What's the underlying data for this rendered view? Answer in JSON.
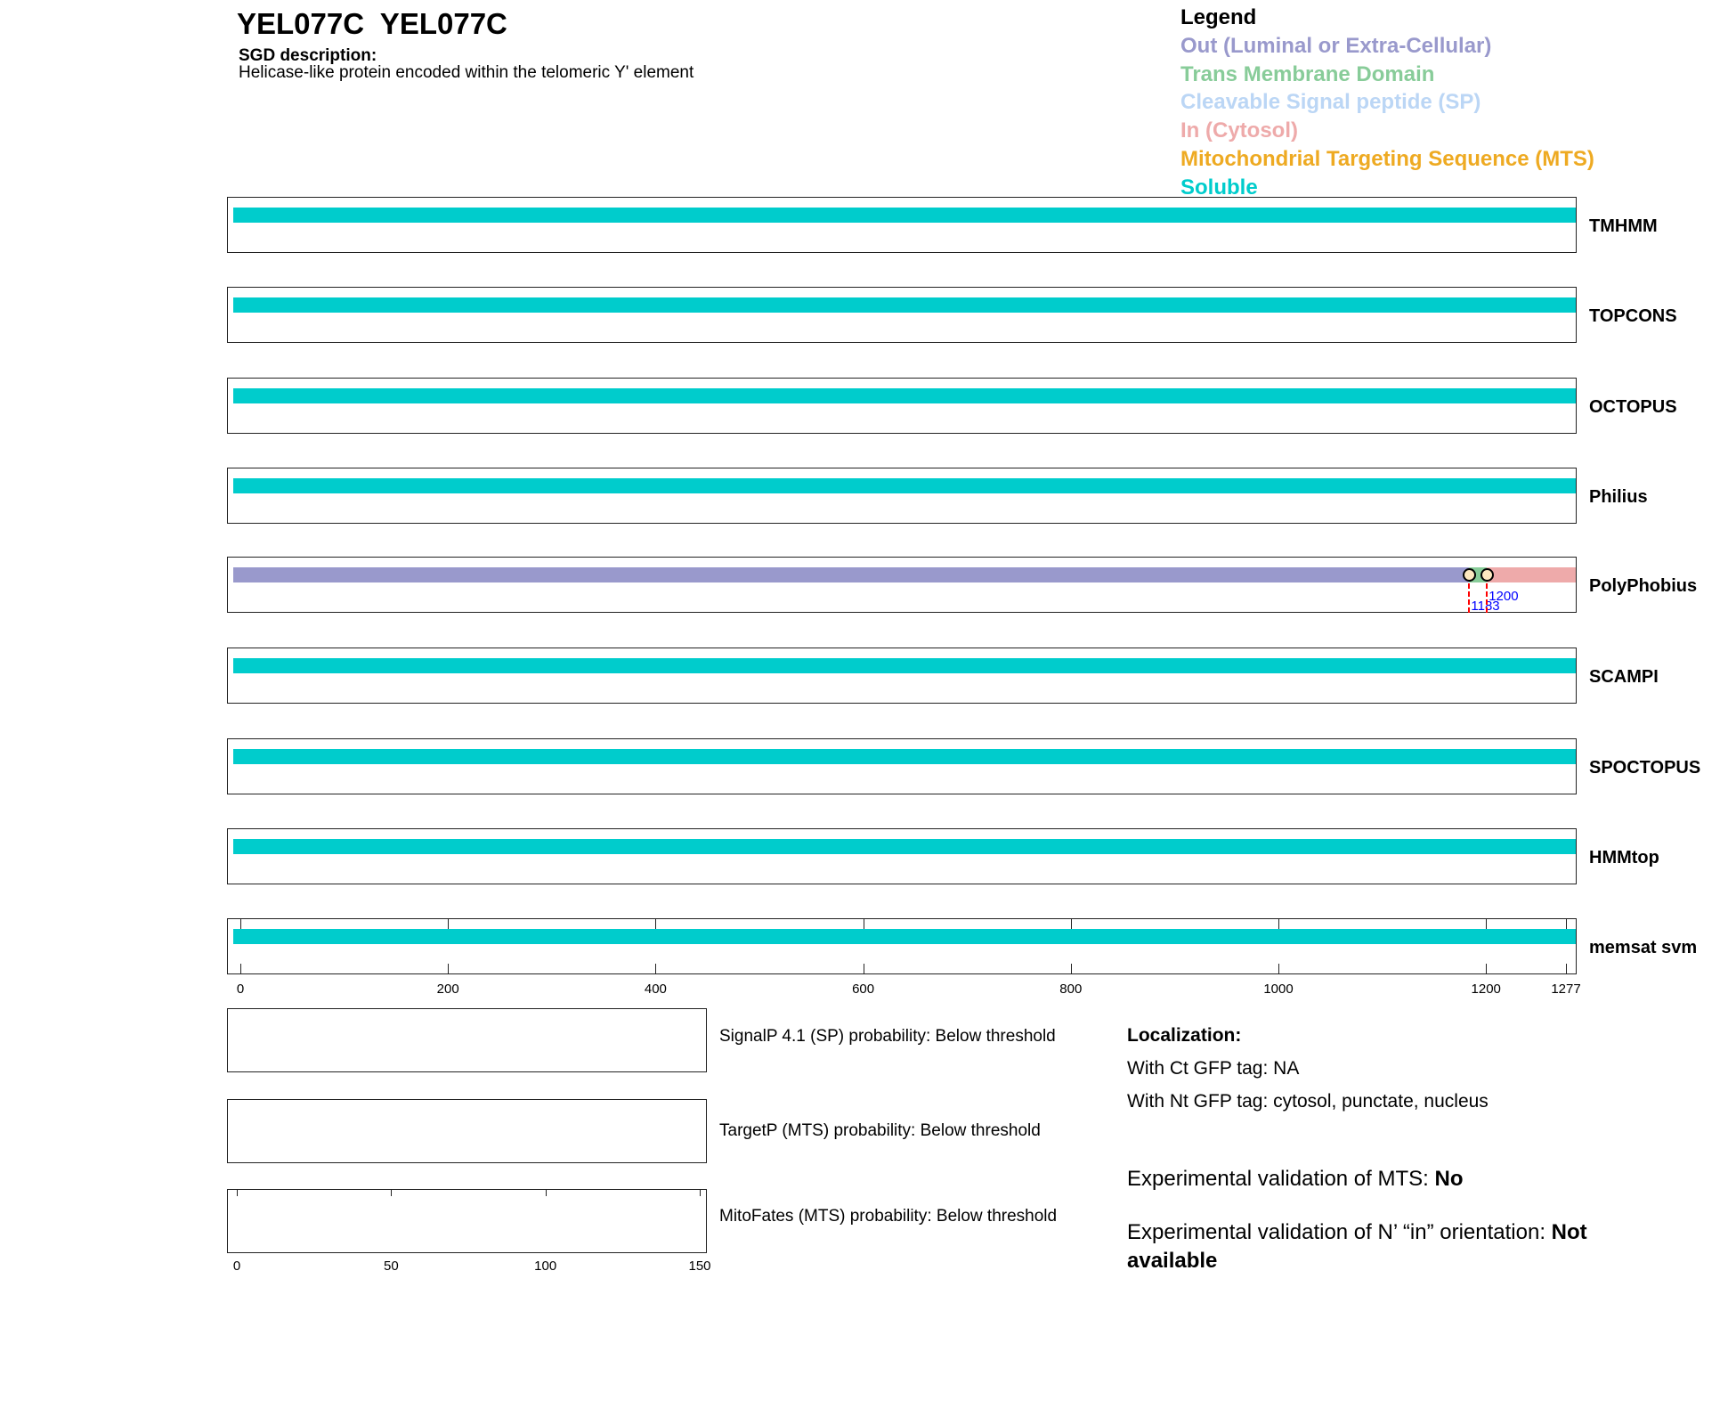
{
  "header": {
    "title": "YEL077C  YEL077C",
    "sgd_heading": "SGD description:",
    "sgd_text": "Helicase-like protein encoded within the telomeric Y' element"
  },
  "legend": {
    "title": "Legend",
    "items": [
      {
        "label": "Out (Luminal or Extra-Cellular)",
        "color": "#9999cc"
      },
      {
        "label": "Trans Membrane Domain",
        "color": "#88cc99"
      },
      {
        "label": "Cleavable Signal peptide (SP)",
        "color": "#bbd6f5"
      },
      {
        "label": "In (Cytosol)",
        "color": "#eeaaaa"
      },
      {
        "label": "Mitochondrial Targeting Sequence (MTS)",
        "color": "#eeaa22"
      },
      {
        "label": "Soluble",
        "color": "#00cccc"
      }
    ]
  },
  "protein_length": 1277,
  "tracks": [
    {
      "name": "TMHMM",
      "segments": [
        {
          "type": "Soluble",
          "start": 1,
          "end": 1277
        }
      ]
    },
    {
      "name": "TOPCONS",
      "segments": [
        {
          "type": "Soluble",
          "start": 1,
          "end": 1277
        }
      ]
    },
    {
      "name": "OCTOPUS",
      "segments": [
        {
          "type": "Soluble",
          "start": 1,
          "end": 1277
        }
      ]
    },
    {
      "name": "Philius",
      "segments": [
        {
          "type": "Soluble",
          "start": 1,
          "end": 1277
        }
      ]
    },
    {
      "name": "PolyPhobius",
      "segments": [
        {
          "type": "Out (Luminal or Extra-Cellular)",
          "start": 1,
          "end": 1183
        },
        {
          "type": "Trans Membrane Domain",
          "start": 1183,
          "end": 1200
        },
        {
          "type": "In (Cytosol)",
          "start": 1200,
          "end": 1277
        }
      ],
      "markers": [
        {
          "pos": 1183,
          "label": "1183"
        },
        {
          "pos": 1200,
          "label": "1200"
        }
      ]
    },
    {
      "name": "SCAMPI",
      "segments": [
        {
          "type": "Soluble",
          "start": 1,
          "end": 1277
        }
      ]
    },
    {
      "name": "SPOCTOPUS",
      "segments": [
        {
          "type": "Soluble",
          "start": 1,
          "end": 1277
        }
      ]
    },
    {
      "name": "HMMtop",
      "segments": [
        {
          "type": "Soluble",
          "start": 1,
          "end": 1277
        }
      ]
    },
    {
      "name": "memsat svm",
      "segments": [
        {
          "type": "Soluble",
          "start": 1,
          "end": 1277
        }
      ]
    }
  ],
  "axis_ticks": [
    "0",
    "200",
    "400",
    "600",
    "800",
    "1000",
    "1200",
    "1277"
  ],
  "predictors": [
    {
      "label": "SignalP 4.1 (SP) probability: Below threshold"
    },
    {
      "label": "TargetP (MTS) probability: Below threshold"
    },
    {
      "label": "MitoFates (MTS) probability: Below threshold"
    }
  ],
  "small_axis_ticks": [
    "0",
    "50",
    "100",
    "150"
  ],
  "localization": {
    "heading": "Localization:",
    "ct": "With Ct GFP tag: NA",
    "nt": "With Nt GFP tag: cytosol, punctate, nucleus"
  },
  "validation": {
    "mts_label": "Experimental validation of MTS: ",
    "mts_value": "No",
    "nin_label": "Experimental validation of N’ “in” orientation: ",
    "nin_value": "Not available"
  }
}
